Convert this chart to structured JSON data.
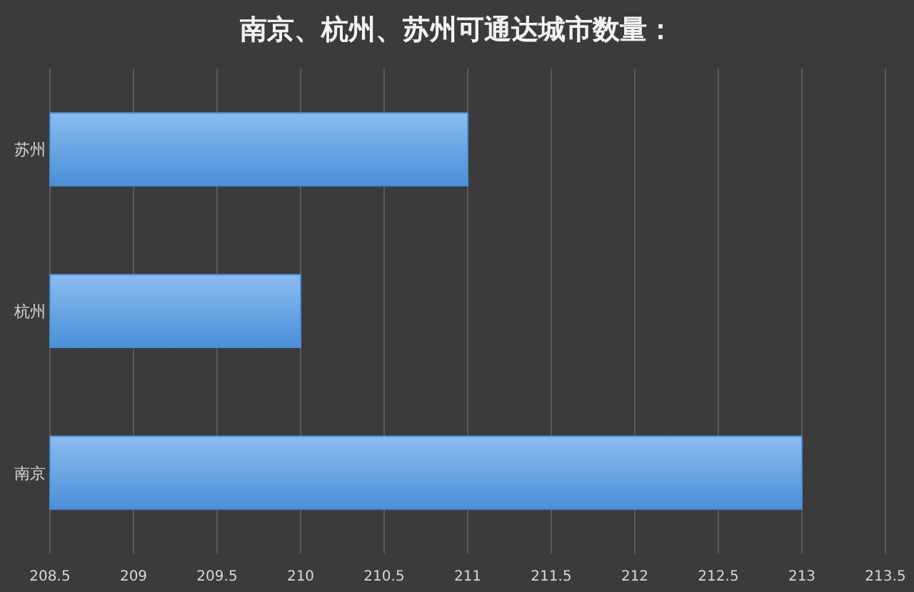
{
  "chart_data": {
    "type": "bar",
    "orientation": "horizontal",
    "title": "南京、杭州、苏州可通达城市数量：",
    "categories": [
      "苏州",
      "杭州",
      "南京"
    ],
    "values": [
      211,
      210,
      213
    ],
    "color": "#4a8fd8",
    "xlim": [
      208.5,
      213.5
    ],
    "xticks": [
      208.5,
      209,
      209.5,
      210,
      210.5,
      211,
      211.5,
      212,
      212.5,
      213,
      213.5
    ],
    "grid": "x"
  }
}
